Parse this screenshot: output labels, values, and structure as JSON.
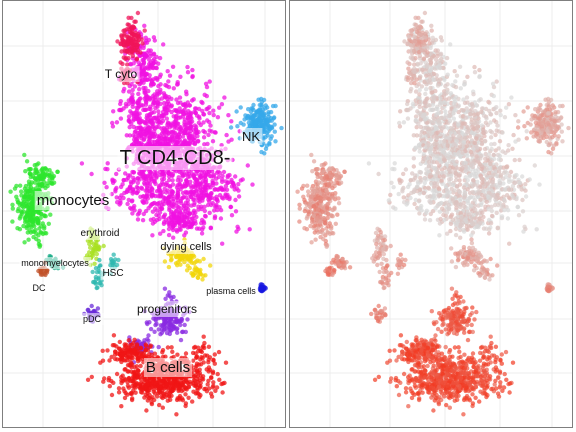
{
  "chart_data": [
    {
      "type": "scatter",
      "panel": "left",
      "title": "",
      "xlabel": "",
      "ylabel": "",
      "grid": true,
      "legend": "none",
      "labels": [
        {
          "text": "T cyto",
          "cluster": "t_cyto"
        },
        {
          "text": "NK",
          "cluster": "nk"
        },
        {
          "text": "T CD4-CD8-",
          "cluster": "t_dn"
        },
        {
          "text": "monocytes",
          "cluster": "monocytes"
        },
        {
          "text": "erythroid",
          "cluster": "erythroid"
        },
        {
          "text": "dying cells",
          "cluster": "dying_cells"
        },
        {
          "text": "monomyelocytes",
          "cluster": "monomyelocytes"
        },
        {
          "text": "HSC",
          "cluster": "hsc"
        },
        {
          "text": "DC",
          "cluster": "dc"
        },
        {
          "text": "plasma cells",
          "cluster": "plasma_cells"
        },
        {
          "text": "progenitors",
          "cluster": "progenitors"
        },
        {
          "text": "pDC",
          "cluster": "pdc"
        },
        {
          "text": "B cells",
          "cluster": "b_cells"
        }
      ],
      "cluster_colors": {
        "t_cyto": "#f0145a",
        "nk": "#35a8ea",
        "t_dn": "#f011e2",
        "monocytes": "#2ee62e",
        "erythroid": "#a8e020",
        "dying_cells": "#f2d60a",
        "monomyelocytes": "#1fae8a",
        "hsc": "#2fb8b0",
        "dc": "#c0522a",
        "plasma_cells": "#1515e0",
        "progenitors": "#8a2be2",
        "pdc": "#6a2cd8",
        "b_cells": "#f01515"
      }
    },
    {
      "type": "scatter",
      "panel": "right",
      "title": "",
      "xlabel": "",
      "ylabel": "",
      "grid": true,
      "legend": "none",
      "color_scale": {
        "low": "#d9d9d9",
        "high": "#f23a22"
      },
      "cluster_intensity": {
        "t_cyto": 0.25,
        "nk": 0.3,
        "t_dn": 0.08,
        "monocytes": 0.45,
        "erythroid": 0.3,
        "dying_cells": 0.35,
        "monomyelocytes": 0.5,
        "hsc": 0.45,
        "dc": 0.6,
        "plasma_cells": 0.5,
        "progenitors": 0.8,
        "pdc": 0.55,
        "b_cells": 0.92
      }
    }
  ]
}
